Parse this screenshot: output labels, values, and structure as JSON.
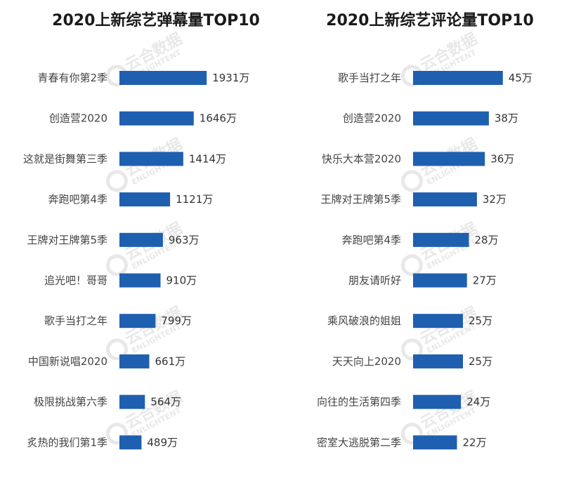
{
  "accent_color": "#1f5fb0",
  "watermark": {
    "text": "云合数据",
    "subtext": "ENLIGHTENT"
  },
  "chart_data": [
    {
      "type": "bar",
      "orientation": "horizontal",
      "title": "2020上新综艺弹幕量TOP10",
      "unit": "万",
      "categories": [
        "青春有你第2季",
        "创造营2020",
        "这就是街舞第三季",
        "奔跑吧第4季",
        "王牌对王牌第5季",
        "追光吧！哥哥",
        "歌手当打之年",
        "中国新说唱2020",
        "极限挑战第六季",
        "炙热的我们第1季"
      ],
      "values": [
        1931,
        1646,
        1414,
        1121,
        963,
        910,
        799,
        661,
        564,
        489
      ],
      "value_labels": [
        "1931万",
        "1646万",
        "1414万",
        "1121万",
        "963万",
        "910万",
        "799万",
        "661万",
        "564万",
        "489万"
      ],
      "color": "#1f5fb0",
      "grid": false
    },
    {
      "type": "bar",
      "orientation": "horizontal",
      "title": "2020上新综艺评论量TOP10",
      "unit": "万",
      "categories": [
        "歌手当打之年",
        "创造营2020",
        "快乐大本营2020",
        "王牌对王牌第5季",
        "奔跑吧第4季",
        "朋友请听好",
        "乘风破浪的姐姐",
        "天天向上2020",
        "向往的生活第四季",
        "密室大逃脱第二季"
      ],
      "values": [
        45,
        38,
        36,
        32,
        28,
        27,
        25,
        25,
        24,
        22
      ],
      "value_labels": [
        "45万",
        "38万",
        "36万",
        "32万",
        "28万",
        "27万",
        "25万",
        "25万",
        "24万",
        "22万"
      ],
      "color": "#1f5fb0",
      "grid": false
    }
  ]
}
